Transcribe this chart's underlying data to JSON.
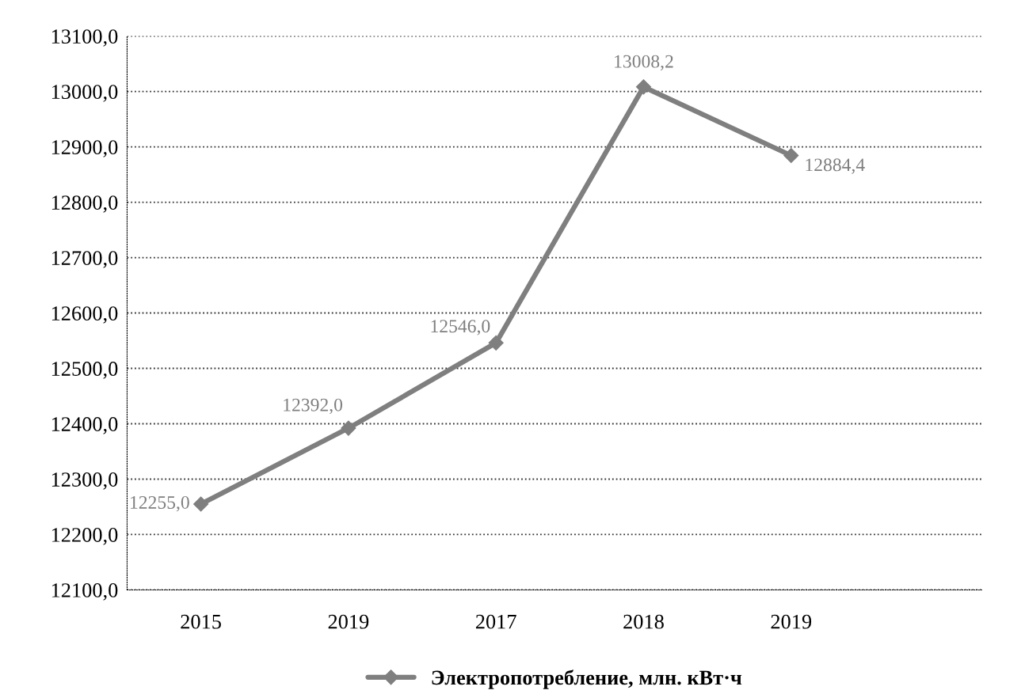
{
  "chart_data": {
    "type": "line",
    "categories": [
      "2015",
      "2019",
      "2017",
      "2018",
      "2019"
    ],
    "series": [
      {
        "name": "Электропотребление, млн. кВт·ч",
        "color": "#7f7f7f",
        "values": [
          12255.0,
          12392.0,
          12546.0,
          13008.2,
          12884.4
        ],
        "value_labels": [
          "12255,0",
          "12392,0",
          "12546,0",
          "13008,2",
          "12884,4"
        ]
      }
    ],
    "ylim": [
      12100,
      13100
    ],
    "yticks": [
      {
        "value": 12100,
        "label": "12100,0"
      },
      {
        "value": 12200,
        "label": "12200,0"
      },
      {
        "value": 12300,
        "label": "12300,0"
      },
      {
        "value": 12400,
        "label": "12400,0"
      },
      {
        "value": 12500,
        "label": "12500,0"
      },
      {
        "value": 12600,
        "label": "12600,0"
      },
      {
        "value": 12700,
        "label": "12700,0"
      },
      {
        "value": 12800,
        "label": "12800,0"
      },
      {
        "value": 12900,
        "label": "12900,0"
      },
      {
        "value": 13000,
        "label": "13000,0"
      },
      {
        "value": 13100,
        "label": "13100,0"
      }
    ],
    "grid": "y",
    "legend": "bottom",
    "marker": "diamond",
    "line_style": "solid"
  }
}
